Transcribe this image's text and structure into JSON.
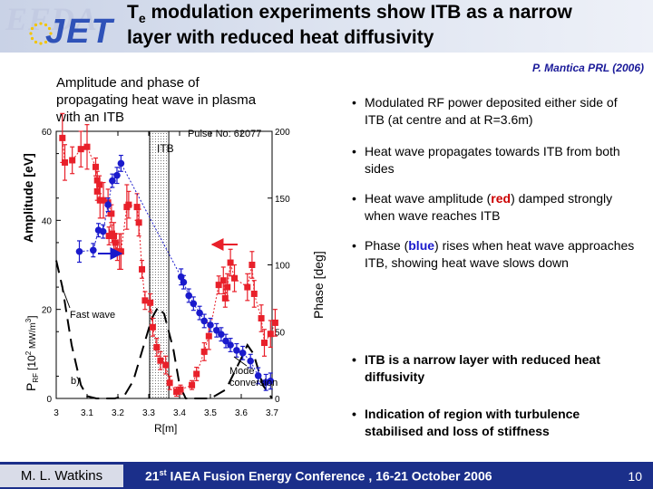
{
  "header": {
    "logo_efda": "EFDA",
    "logo_jet": "JET",
    "title_line1_pre": "T",
    "title_line1_sub": "e",
    "title_line1_post": " modulation experiments show ITB as a narrow",
    "title_line2": "layer with reduced heat diffusivity",
    "bg_color": "#d6dcec"
  },
  "reference": "P. Mantica PRL (2006)",
  "chart_caption": "Amplitude and phase of propagating heat wave in plasma with an ITB",
  "chart_data": {
    "type": "scatter",
    "xlabel": "R[m]",
    "x_ticks": [
      "3",
      "3.1",
      "3.2",
      "3.3",
      "3.4",
      "3.5",
      "3.6",
      "3.7"
    ],
    "xlim": [
      3.0,
      3.7
    ],
    "y_left_label": "Amplitude [eV]",
    "y_left_ticks": [
      "0",
      "20",
      "40",
      "60"
    ],
    "y_left_lim": [
      0,
      60
    ],
    "prf_label_main": "P",
    "prf_label_sub": "RF",
    "prf_label_unit": "[10",
    "prf_label_exp": "2",
    "prf_label_unit2": " MW/m",
    "prf_label_exp2": "3",
    "prf_label_close": "]",
    "y_right_label": "Phase [deg]",
    "y_right_ticks": [
      "0",
      "50",
      "100",
      "150",
      "200"
    ],
    "y_right_lim": [
      0,
      200
    ],
    "pulse_label": "Pulse No: 62077",
    "itb_region": {
      "x_start": 3.303,
      "x_end": 3.365,
      "label": "ITB"
    },
    "annotations": {
      "fast_wave": "Fast wave",
      "mode_conversion_1": "Mode",
      "mode_conversion_2": "conversion",
      "panel": "b)"
    },
    "series": [
      {
        "quantity": "amplitude",
        "axis": "left",
        "color": "#e8202a",
        "points": [
          {
            "x": 3.02,
            "y": 58.5,
            "e": 5.5
          },
          {
            "x": 3.028,
            "y": 53,
            "e": 4
          },
          {
            "x": 3.052,
            "y": 53.5,
            "e": 3
          },
          {
            "x": 3.08,
            "y": 56,
            "e": 4
          },
          {
            "x": 3.1,
            "y": 56.5,
            "e": 5
          },
          {
            "x": 3.128,
            "y": 52,
            "e": 2
          },
          {
            "x": 3.133,
            "y": 49,
            "e": 2
          },
          {
            "x": 3.14,
            "y": 48,
            "e": 2
          },
          {
            "x": 3.133,
            "y": 46.5,
            "e": 2
          },
          {
            "x": 3.142,
            "y": 44.5,
            "e": 4
          },
          {
            "x": 3.153,
            "y": 44.5,
            "e": 4
          },
          {
            "x": 3.168,
            "y": 44,
            "e": 3
          },
          {
            "x": 3.179,
            "y": 41.5,
            "e": 2
          },
          {
            "x": 3.171,
            "y": 36.5,
            "e": 2
          },
          {
            "x": 3.181,
            "y": 37,
            "e": 2
          },
          {
            "x": 3.187,
            "y": 36.5,
            "e": 3
          },
          {
            "x": 3.192,
            "y": 35,
            "e": 2
          },
          {
            "x": 3.198,
            "y": 33,
            "e": 2
          },
          {
            "x": 3.205,
            "y": 33,
            "e": 4
          },
          {
            "x": 3.21,
            "y": 33,
            "e": 4
          },
          {
            "x": 3.229,
            "y": 43,
            "e": 5
          },
          {
            "x": 3.235,
            "y": 43.5,
            "e": 3
          },
          {
            "x": 3.262,
            "y": 43,
            "e": 3
          },
          {
            "x": 3.268,
            "y": 39.5,
            "e": 3
          },
          {
            "x": 3.278,
            "y": 29,
            "e": 2
          },
          {
            "x": 3.288,
            "y": 22,
            "e": 2
          },
          {
            "x": 3.305,
            "y": 21.5,
            "e": 2
          },
          {
            "x": 3.313,
            "y": 16,
            "e": 2
          },
          {
            "x": 3.326,
            "y": 11.5,
            "e": 2
          },
          {
            "x": 3.338,
            "y": 8.5,
            "e": 2
          },
          {
            "x": 3.355,
            "y": 7.5,
            "e": 2
          },
          {
            "x": 3.368,
            "y": 3.5,
            "e": 1.5
          },
          {
            "x": 3.39,
            "y": 1.5,
            "e": 1
          },
          {
            "x": 3.403,
            "y": 2,
            "e": 1
          },
          {
            "x": 3.44,
            "y": 3,
            "e": 1
          },
          {
            "x": 3.455,
            "y": 5.5,
            "e": 1.5
          },
          {
            "x": 3.48,
            "y": 10.5,
            "e": 2
          },
          {
            "x": 3.495,
            "y": 14,
            "e": 3
          },
          {
            "x": 3.527,
            "y": 25.5,
            "e": 2
          },
          {
            "x": 3.542,
            "y": 26.5,
            "e": 3
          },
          {
            "x": 3.548,
            "y": 22.5,
            "e": 2
          },
          {
            "x": 3.555,
            "y": 25,
            "e": 3
          },
          {
            "x": 3.565,
            "y": 30.5,
            "e": 3
          },
          {
            "x": 3.578,
            "y": 27,
            "e": 3
          },
          {
            "x": 3.62,
            "y": 25,
            "e": 3
          },
          {
            "x": 3.635,
            "y": 30,
            "e": 3
          },
          {
            "x": 3.642,
            "y": 23.5,
            "e": 3
          },
          {
            "x": 3.665,
            "y": 18,
            "e": 3
          },
          {
            "x": 3.675,
            "y": 12.5,
            "e": 3
          },
          {
            "x": 3.695,
            "y": 14.5,
            "e": 3
          },
          {
            "x": 3.71,
            "y": 17,
            "e": 3
          }
        ]
      },
      {
        "quantity": "phase",
        "axis": "right",
        "color": "#1a1acc",
        "points": [
          {
            "x": 3.075,
            "y": 110,
            "e": 8
          },
          {
            "x": 3.12,
            "y": 111,
            "e": 5
          },
          {
            "x": 3.137,
            "y": 126,
            "e": 5
          },
          {
            "x": 3.152,
            "y": 125,
            "e": 5
          },
          {
            "x": 3.168,
            "y": 145,
            "e": 5
          },
          {
            "x": 3.182,
            "y": 163,
            "e": 5
          },
          {
            "x": 3.197,
            "y": 167,
            "e": 6
          },
          {
            "x": 3.21,
            "y": 176,
            "e": 6
          },
          {
            "x": 3.405,
            "y": 91,
            "e": 6
          },
          {
            "x": 3.413,
            "y": 87,
            "e": 5
          },
          {
            "x": 3.43,
            "y": 77,
            "e": 5
          },
          {
            "x": 3.445,
            "y": 71,
            "e": 5
          },
          {
            "x": 3.465,
            "y": 64,
            "e": 5
          },
          {
            "x": 3.48,
            "y": 58,
            "e": 5
          },
          {
            "x": 3.5,
            "y": 55,
            "e": 5
          },
          {
            "x": 3.52,
            "y": 51,
            "e": 5
          },
          {
            "x": 3.535,
            "y": 48,
            "e": 5
          },
          {
            "x": 3.55,
            "y": 43,
            "e": 5
          },
          {
            "x": 3.565,
            "y": 40,
            "e": 5
          },
          {
            "x": 3.585,
            "y": 36,
            "e": 5
          },
          {
            "x": 3.605,
            "y": 34,
            "e": 5
          },
          {
            "x": 3.63,
            "y": 28,
            "e": 5
          },
          {
            "x": 3.655,
            "y": 17,
            "e": 6
          },
          {
            "x": 3.68,
            "y": 12,
            "e": 6
          },
          {
            "x": 3.695,
            "y": 13,
            "e": 6
          }
        ]
      },
      {
        "quantity": "power deposition",
        "axis": "left",
        "style": "dashed",
        "color": "#000000",
        "points": [
          {
            "x": 3.0,
            "y": 31
          },
          {
            "x": 3.02,
            "y": 25
          },
          {
            "x": 3.05,
            "y": 12
          },
          {
            "x": 3.08,
            "y": 3
          },
          {
            "x": 3.1,
            "y": 0.5
          },
          {
            "x": 3.13,
            "y": 0
          },
          {
            "x": 3.16,
            "y": 0
          },
          {
            "x": 3.19,
            "y": 0
          },
          {
            "x": 3.22,
            "y": 0.5
          },
          {
            "x": 3.25,
            "y": 4
          },
          {
            "x": 3.28,
            "y": 11
          },
          {
            "x": 3.31,
            "y": 18
          },
          {
            "x": 3.33,
            "y": 20.5
          },
          {
            "x": 3.35,
            "y": 19
          },
          {
            "x": 3.38,
            "y": 11
          },
          {
            "x": 3.4,
            "y": 3
          },
          {
            "x": 3.42,
            "y": 0
          },
          {
            "x": 3.5,
            "y": 0
          },
          {
            "x": 3.55,
            "y": 2
          },
          {
            "x": 3.6,
            "y": 9
          },
          {
            "x": 3.62,
            "y": 12
          },
          {
            "x": 3.64,
            "y": 10
          },
          {
            "x": 3.67,
            "y": 3
          },
          {
            "x": 3.7,
            "y": 0
          }
        ]
      }
    ]
  },
  "bullets": [
    "Modulated RF power deposited either side of ITB (at centre and at R=3.6m)",
    "Heat wave propagates towards ITB from both sides"
  ],
  "bullet3": {
    "pre": "Heat wave amplitude (",
    "red": "red",
    "post": ") damped strongly when wave reaches ITB"
  },
  "bullet4": {
    "pre": "Phase (",
    "blue": "blue",
    "post": ") rises when heat wave approaches ITB, showing heat wave slows down"
  },
  "bullets_bold": [
    "ITB is a narrow layer with reduced heat diffusivity",
    "Indication of region with turbulence stabilised and loss of stiffness"
  ],
  "bullet_mark": "•",
  "footer": {
    "author": "M. L. Watkins",
    "conference_num": "21",
    "conference_sup": "st",
    "conference_rest": " IAEA Fusion Energy Conference , 16-21 October 2006",
    "page": "10",
    "bg_color": "#1b2f8a"
  }
}
